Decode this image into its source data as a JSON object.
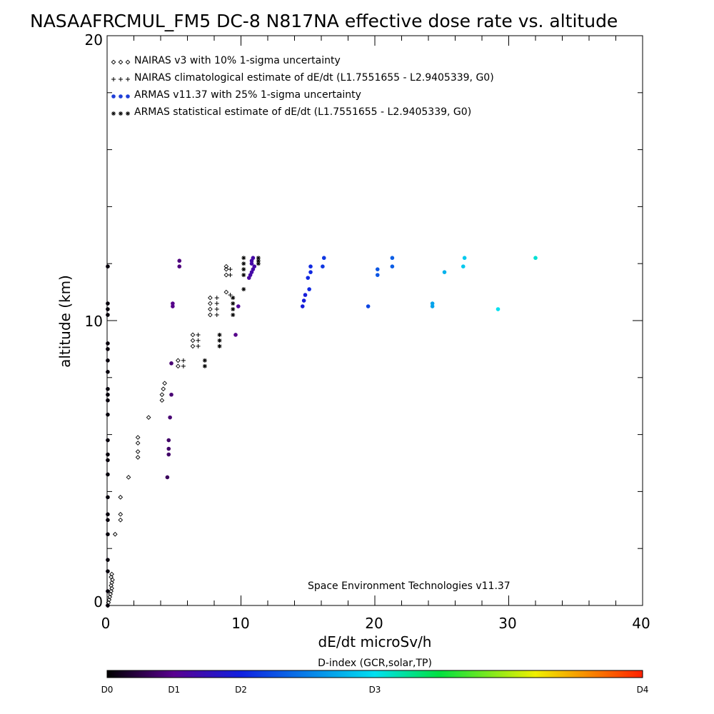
{
  "chart_data": {
    "type": "scatter",
    "title": "NASAAFRCMUL_FM5 DC-8   N817NA effective dose rate vs. altitude",
    "xlabel": "dE/dt microSv/h",
    "ylabel": "altitude (km)",
    "xlim": [
      0,
      40
    ],
    "ylim": [
      0,
      20
    ],
    "x_ticks": [
      "0",
      "10",
      "20",
      "30",
      "40"
    ],
    "y_ticks": [
      "0",
      "10",
      "20"
    ],
    "grid": false,
    "legend_position": "top-left",
    "legend": [
      {
        "label": "NAIRAS v3 with 10% 1-sigma uncertainty",
        "marker": "diamond"
      },
      {
        "label": "NAIRAS climatological estimate of dE/dt (L1.7551655 - L2.9405339, G0)",
        "marker": "plus"
      },
      {
        "label": "ARMAS v11.37 with 25% 1-sigma uncertainty",
        "marker": "dot"
      },
      {
        "label": "ARMAS statistical estimate of dE/dt (L1.7551655 - L2.9405339, G0)",
        "marker": "asterisk"
      }
    ],
    "annotation": "Space Environment Technologies v11.37",
    "colorbar": {
      "title": "D-index (GCR,solar,TP)",
      "labels": [
        {
          "text": "D0",
          "value": 0
        },
        {
          "text": "D1",
          "value": 0.125
        },
        {
          "text": "D2",
          "value": 0.25
        },
        {
          "text": "D3",
          "value": 0.5
        },
        {
          "text": "D4",
          "value": 1.0
        }
      ]
    },
    "series": [
      {
        "marker": "diamond",
        "points": [
          [
            0.05,
            0
          ],
          [
            0.1,
            0.1
          ],
          [
            0.15,
            0.2
          ],
          [
            0.2,
            0.3
          ],
          [
            0.25,
            0.4
          ],
          [
            0.3,
            0.5
          ],
          [
            0.35,
            0.6
          ],
          [
            0.3,
            0.7
          ],
          [
            0.35,
            0.8
          ],
          [
            0.4,
            0.9
          ],
          [
            0.3,
            1.0
          ],
          [
            0.35,
            1.1
          ],
          [
            0.6,
            2.5
          ],
          [
            1.0,
            3.0
          ],
          [
            1.0,
            3.2
          ],
          [
            1.0,
            3.8
          ],
          [
            1.6,
            4.5
          ],
          [
            2.3,
            5.2
          ],
          [
            2.3,
            5.4
          ],
          [
            2.3,
            5.7
          ],
          [
            2.3,
            5.9
          ],
          [
            3.1,
            6.6
          ],
          [
            4.1,
            7.2
          ],
          [
            4.1,
            7.4
          ],
          [
            4.2,
            7.6
          ],
          [
            4.3,
            7.8
          ],
          [
            5.3,
            8.4
          ],
          [
            5.3,
            8.6
          ],
          [
            6.4,
            9.1
          ],
          [
            6.4,
            9.3
          ],
          [
            6.4,
            9.5
          ],
          [
            7.7,
            10.2
          ],
          [
            7.7,
            10.4
          ],
          [
            7.7,
            10.6
          ],
          [
            7.7,
            10.8
          ],
          [
            8.9,
            11.0
          ],
          [
            8.9,
            11.6
          ],
          [
            8.9,
            11.8
          ],
          [
            8.9,
            11.9
          ]
        ]
      },
      {
        "marker": "plus",
        "points": [
          [
            5.7,
            8.4
          ],
          [
            5.7,
            8.6
          ],
          [
            6.8,
            9.1
          ],
          [
            6.8,
            9.3
          ],
          [
            6.8,
            9.5
          ],
          [
            8.2,
            10.2
          ],
          [
            8.2,
            10.4
          ],
          [
            8.2,
            10.6
          ],
          [
            8.2,
            10.8
          ],
          [
            9.2,
            10.9
          ],
          [
            9.2,
            11.6
          ],
          [
            9.2,
            11.8
          ]
        ]
      },
      {
        "marker": "dot",
        "points": [
          [
            0.05,
            0
          ],
          [
            0.05,
            0.5
          ],
          [
            0.05,
            1.2
          ],
          [
            0.05,
            1.6
          ],
          [
            0.05,
            2.5
          ],
          [
            0.05,
            3.0
          ],
          [
            0.05,
            3.2
          ],
          [
            0.05,
            3.8
          ],
          [
            0.05,
            4.6
          ],
          [
            0.05,
            5.1
          ],
          [
            0.05,
            5.3
          ],
          [
            0.05,
            5.8
          ],
          [
            0.05,
            6.7
          ],
          [
            0.05,
            7.2
          ],
          [
            0.05,
            7.4
          ],
          [
            0.05,
            7.6
          ],
          [
            0.05,
            8.2
          ],
          [
            0.05,
            8.6
          ],
          [
            0.05,
            9.0
          ],
          [
            0.05,
            9.2
          ],
          [
            0.05,
            10.2
          ],
          [
            0.05,
            10.4
          ],
          [
            0.05,
            10.6
          ],
          [
            0.05,
            11.9
          ],
          [
            4.5,
            4.5
          ],
          [
            4.6,
            5.3
          ],
          [
            4.6,
            5.5
          ],
          [
            4.6,
            5.8
          ],
          [
            4.7,
            6.6
          ],
          [
            4.8,
            7.4
          ],
          [
            4.8,
            8.5
          ],
          [
            4.9,
            10.5
          ],
          [
            4.9,
            10.6
          ],
          [
            5.4,
            11.9
          ],
          [
            5.4,
            12.1
          ],
          [
            9.6,
            9.5
          ],
          [
            9.8,
            10.5
          ],
          [
            10.6,
            11.5
          ],
          [
            10.7,
            11.6
          ],
          [
            10.8,
            11.7
          ],
          [
            10.9,
            11.8
          ],
          [
            11.0,
            11.9
          ],
          [
            10.8,
            12.0
          ],
          [
            10.8,
            12.1
          ],
          [
            10.9,
            12.2
          ],
          [
            14.6,
            10.5
          ],
          [
            14.7,
            10.7
          ],
          [
            14.8,
            10.9
          ],
          [
            15.1,
            11.1
          ],
          [
            15.0,
            11.5
          ],
          [
            15.2,
            11.7
          ],
          [
            15.2,
            11.9
          ],
          [
            16.1,
            11.9
          ],
          [
            16.2,
            12.2
          ],
          [
            19.5,
            10.5
          ],
          [
            20.2,
            11.6
          ],
          [
            20.2,
            11.8
          ],
          [
            21.3,
            11.9
          ],
          [
            21.3,
            12.2
          ],
          [
            24.3,
            10.5
          ],
          [
            24.3,
            10.6
          ],
          [
            25.2,
            11.7
          ],
          [
            26.6,
            11.9
          ],
          [
            26.7,
            12.2
          ],
          [
            29.2,
            10.4
          ],
          [
            32.0,
            12.2
          ]
        ],
        "d_index": [
          0.01,
          0.01,
          0.01,
          0.01,
          0.01,
          0.01,
          0.01,
          0.01,
          0.01,
          0.01,
          0.01,
          0.01,
          0.01,
          0.01,
          0.01,
          0.01,
          0.01,
          0.01,
          0.01,
          0.01,
          0.01,
          0.01,
          0.01,
          0.01,
          0.08,
          0.09,
          0.09,
          0.09,
          0.1,
          0.1,
          0.1,
          0.12,
          0.12,
          0.11,
          0.11,
          0.12,
          0.14,
          0.15,
          0.16,
          0.16,
          0.16,
          0.16,
          0.16,
          0.16,
          0.16,
          0.24,
          0.24,
          0.24,
          0.26,
          0.26,
          0.26,
          0.26,
          0.28,
          0.28,
          0.3,
          0.32,
          0.32,
          0.33,
          0.33,
          0.42,
          0.42,
          0.44,
          0.47,
          0.47,
          0.5,
          0.52
        ]
      },
      {
        "marker": "asterisk",
        "points": [
          [
            7.3,
            8.4
          ],
          [
            7.3,
            8.6
          ],
          [
            8.4,
            9.1
          ],
          [
            8.4,
            9.3
          ],
          [
            8.4,
            9.5
          ],
          [
            9.4,
            10.2
          ],
          [
            9.4,
            10.4
          ],
          [
            9.4,
            10.6
          ],
          [
            9.4,
            10.8
          ],
          [
            10.2,
            11.1
          ],
          [
            10.2,
            11.6
          ],
          [
            10.2,
            11.8
          ],
          [
            10.2,
            12.0
          ],
          [
            10.2,
            12.2
          ],
          [
            11.3,
            12.0
          ],
          [
            11.3,
            12.1
          ],
          [
            11.3,
            12.2
          ]
        ]
      }
    ]
  }
}
